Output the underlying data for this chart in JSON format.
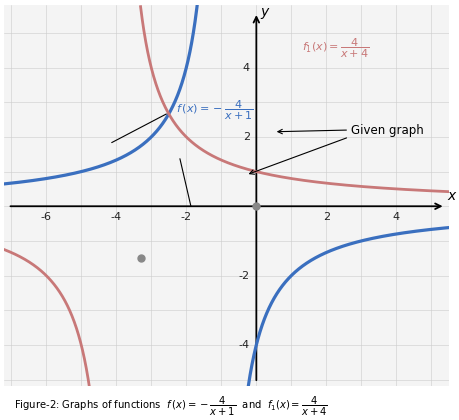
{
  "title": "",
  "xlabel": "x",
  "ylabel": "y",
  "xlim": [
    -7.2,
    5.5
  ],
  "ylim": [
    -5.2,
    5.8
  ],
  "xticks": [
    -6,
    -4,
    -2,
    2,
    4
  ],
  "yticks": [
    -4,
    -2,
    2,
    4
  ],
  "blue_color": "#3a6fbf",
  "pink_color": "#c87878",
  "bg_color": "#f4f4f4",
  "grid_color": "#cccccc",
  "dot_color": "#888888",
  "caption_prefix": "Figure-2: Graphs of functions  ",
  "given_graph_label": "Given graph"
}
